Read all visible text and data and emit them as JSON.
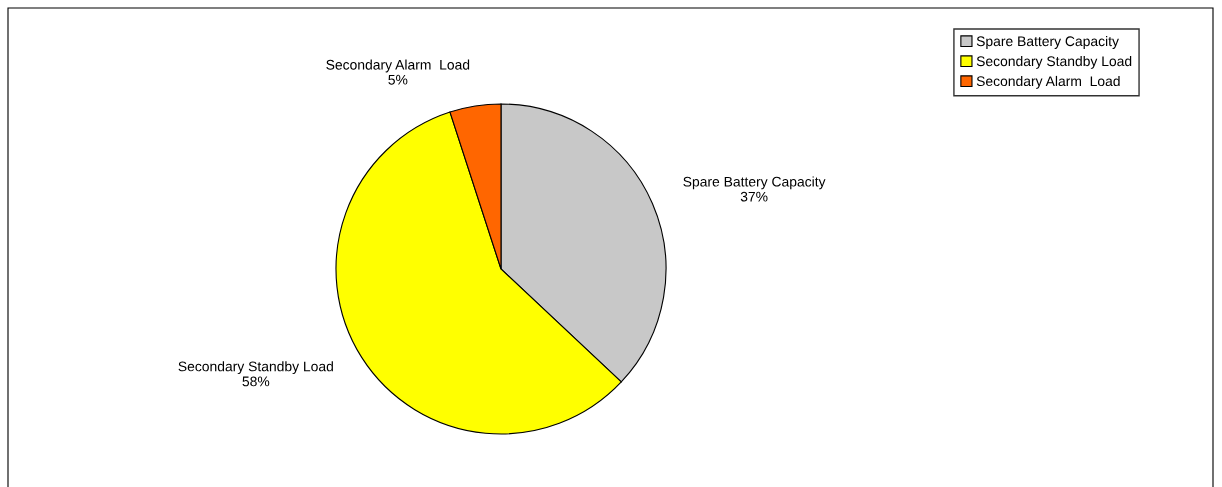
{
  "chart_data": {
    "type": "pie",
    "categories": [
      "Spare Battery Capacity",
      "Secondary Standby Load",
      "Secondary Alarm  Load"
    ],
    "values": [
      37,
      58,
      5
    ],
    "colors": [
      "#c8c8c8",
      "#ffff00",
      "#ff6600"
    ],
    "value_labels": [
      "37%",
      "58%",
      "5%"
    ],
    "legend": "top right"
  }
}
